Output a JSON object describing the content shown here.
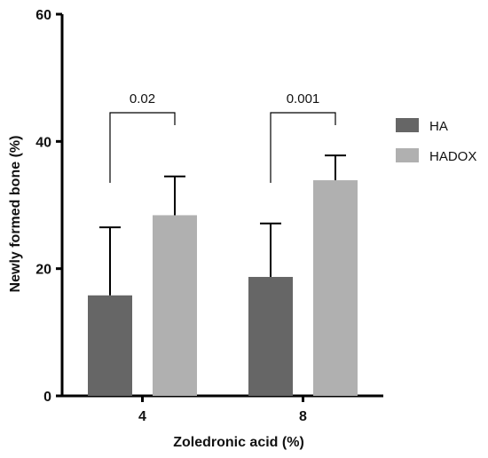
{
  "chart_data": {
    "type": "bar",
    "title": "",
    "xlabel": "Zoledronic acid (%)",
    "ylabel": "Newly formed bone (%)",
    "ylim": [
      0,
      60
    ],
    "yticks": [
      "0",
      "20",
      "40",
      "60"
    ],
    "categories": [
      "4",
      "8"
    ],
    "series": [
      {
        "name": "HA",
        "color": "#666666",
        "values": [
          15.8,
          18.7
        ],
        "error_upper": [
          10.7,
          8.4
        ]
      },
      {
        "name": "HADOX",
        "color": "#b0b0b0",
        "values": [
          28.4,
          33.9
        ],
        "error_upper": [
          6.1,
          3.9
        ]
      }
    ],
    "error_bars": "upper only",
    "legend": "right",
    "grid": false,
    "annotations": [
      {
        "label": "0.02",
        "category": "4"
      },
      {
        "label": "0.001",
        "category": "8"
      }
    ]
  }
}
